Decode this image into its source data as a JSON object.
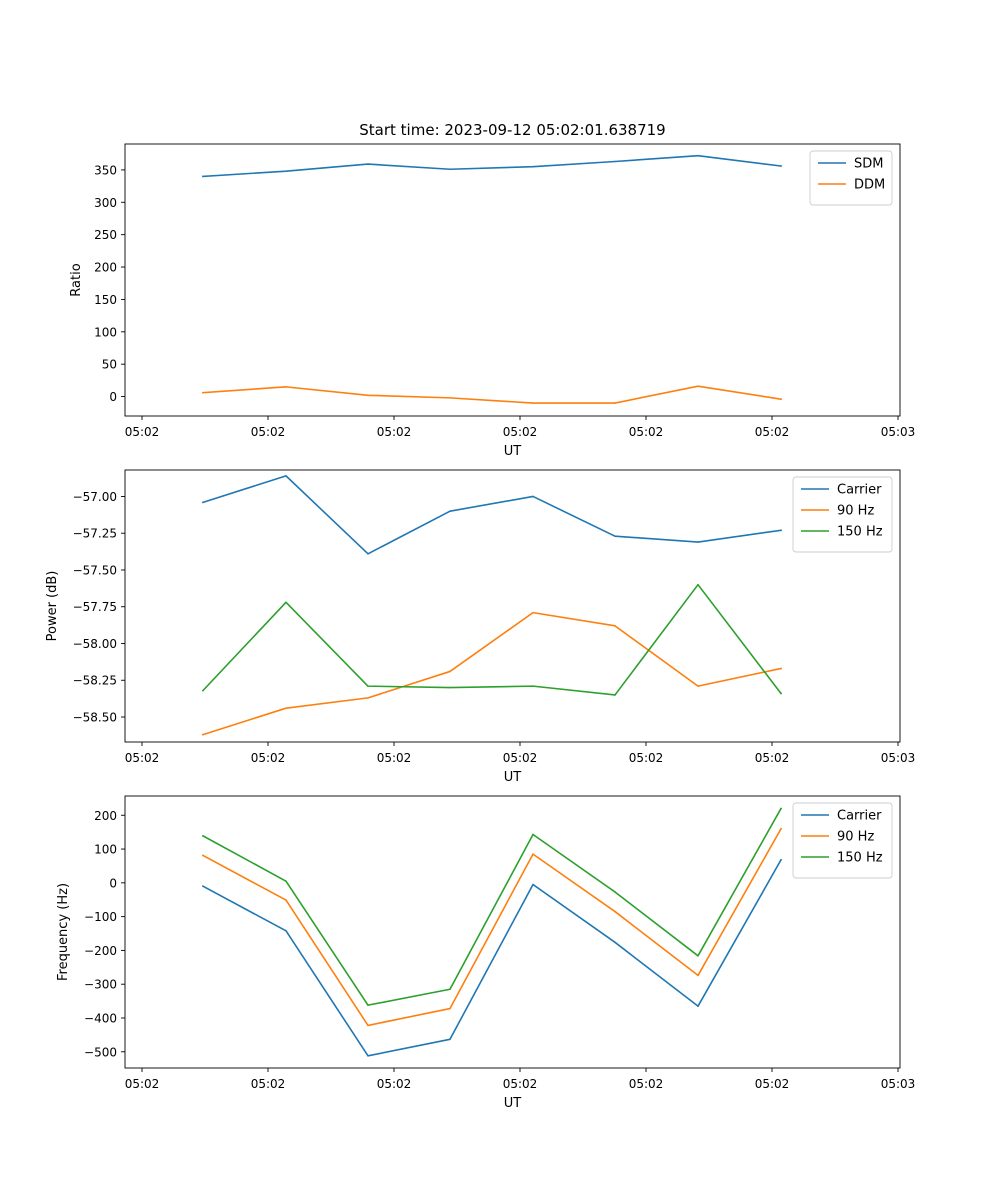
{
  "chart_data": [
    {
      "type": "line",
      "title": "Start time: 2023-09-12 05:02:01.638719",
      "xlabel": "UT",
      "ylabel": "Ratio",
      "xtick_labels": [
        "05:02",
        "05:02",
        "05:02",
        "05:02",
        "05:02",
        "05:02",
        "05:03"
      ],
      "ylim": [
        -30,
        390
      ],
      "yticks": [
        0,
        50,
        100,
        150,
        200,
        250,
        300,
        350
      ],
      "ytick_labels": [
        "0",
        "50",
        "100",
        "150",
        "200",
        "250",
        "300",
        "350"
      ],
      "legend_position": "top-right",
      "series": [
        {
          "name": "SDM",
          "color": "#1f77b4",
          "values": [
            340,
            348,
            359,
            351,
            355,
            363,
            372,
            356
          ]
        },
        {
          "name": "DDM",
          "color": "#ff7f0e",
          "values": [
            6,
            15,
            2,
            -2,
            -10,
            -10,
            16,
            -4
          ]
        }
      ]
    },
    {
      "type": "line",
      "title": "",
      "xlabel": "UT",
      "ylabel": "Power (dB)",
      "xtick_labels": [
        "05:02",
        "05:02",
        "05:02",
        "05:02",
        "05:02",
        "05:02",
        "05:03"
      ],
      "ylim": [
        -58.67,
        -56.82
      ],
      "yticks": [
        -57.0,
        -57.25,
        -57.5,
        -57.75,
        -58.0,
        -58.25,
        -58.5
      ],
      "ytick_labels": [
        "−57.00",
        "−57.25",
        "−57.50",
        "−57.75",
        "−58.00",
        "−58.25",
        "−58.50"
      ],
      "legend_position": "top-right",
      "series": [
        {
          "name": "Carrier",
          "color": "#1f77b4",
          "values": [
            -57.04,
            -56.86,
            -57.39,
            -57.1,
            -57.0,
            -57.27,
            -57.31,
            -57.23
          ]
        },
        {
          "name": "90 Hz",
          "color": "#ff7f0e",
          "values": [
            -58.62,
            -58.44,
            -58.37,
            -58.19,
            -57.79,
            -57.88,
            -58.29,
            -58.17
          ]
        },
        {
          "name": "150 Hz",
          "color": "#2ca02c",
          "values": [
            -58.32,
            -57.72,
            -58.29,
            -58.3,
            -58.29,
            -58.35,
            -57.6,
            -58.34
          ]
        }
      ]
    },
    {
      "type": "line",
      "title": "",
      "xlabel": "UT",
      "ylabel": "Frequency (Hz)",
      "xtick_labels": [
        "05:02",
        "05:02",
        "05:02",
        "05:02",
        "05:02",
        "05:02",
        "05:03"
      ],
      "ylim": [
        -548,
        257
      ],
      "yticks": [
        200,
        100,
        0,
        -100,
        -200,
        -300,
        -400,
        -500
      ],
      "ytick_labels": [
        "200",
        "100",
        "0",
        "−100",
        "−200",
        "−300",
        "−400",
        "−500"
      ],
      "legend_position": "top-right",
      "series": [
        {
          "name": "Carrier",
          "color": "#1f77b4",
          "values": [
            -10,
            -142,
            -512,
            -463,
            -5,
            -176,
            -365,
            68
          ]
        },
        {
          "name": "90 Hz",
          "color": "#ff7f0e",
          "values": [
            81,
            -51,
            -422,
            -372,
            85,
            -85,
            -274,
            160
          ]
        },
        {
          "name": "150 Hz",
          "color": "#2ca02c",
          "values": [
            139,
            5,
            -362,
            -315,
            143,
            -27,
            -216,
            220
          ]
        }
      ]
    }
  ]
}
